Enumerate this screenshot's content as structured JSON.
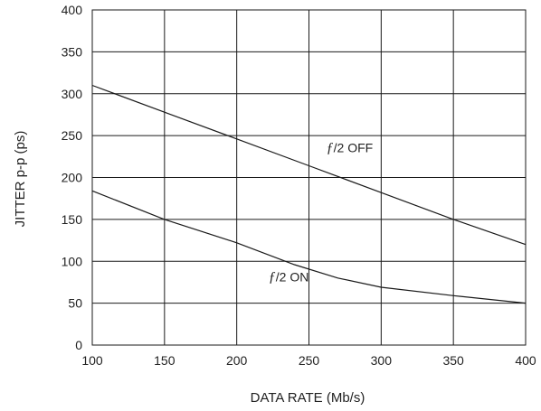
{
  "chart_data": {
    "type": "line",
    "xlabel": "DATA RATE (Mb/s)",
    "ylabel": "JITTER p-p (ps)",
    "xlim": [
      100,
      400
    ],
    "ylim": [
      0,
      400
    ],
    "xticks": [
      100,
      150,
      200,
      250,
      300,
      350,
      400
    ],
    "yticks": [
      0,
      50,
      100,
      150,
      200,
      250,
      300,
      350,
      400
    ],
    "grid": true,
    "series": [
      {
        "name": "f/2 OFF",
        "label_symbol": "ƒ",
        "label_text": "/2 OFF",
        "label_at": [
          262,
          230
        ],
        "x": [
          100,
          150,
          200,
          250,
          300,
          350,
          400
        ],
        "y": [
          310,
          278,
          246,
          214,
          182,
          150,
          120
        ]
      },
      {
        "name": "f/2 ON",
        "label_symbol": "ƒ",
        "label_text": "/2 ON",
        "label_at": [
          222,
          76
        ],
        "x": [
          100,
          150,
          200,
          240,
          270,
          300,
          350,
          400
        ],
        "y": [
          184,
          150,
          122,
          96,
          80,
          69,
          59,
          50
        ]
      }
    ],
    "colors": {
      "line": "#1a1a1a",
      "grid": "#1a1a1a",
      "text": "#222222"
    }
  }
}
